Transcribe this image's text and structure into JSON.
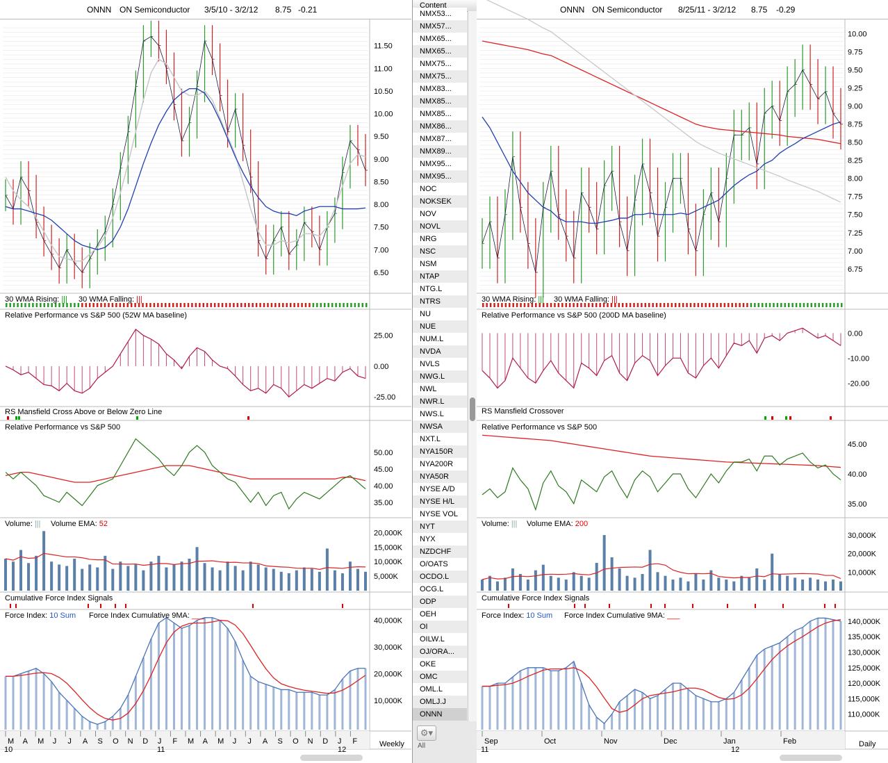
{
  "left": {
    "symbol": "ONNN",
    "name": "ON Semiconductor",
    "range": "3/5/10 - 3/2/12",
    "last": "8.75",
    "change": "-0.21",
    "price_ticks": [
      "11.50",
      "11.00",
      "10.50",
      "10.00",
      "9.50",
      "9.00",
      "8.50",
      "8.00",
      "7.50",
      "7.00",
      "6.50"
    ],
    "wma_rising": "30 WMA Rising:",
    "wma_falling": "30 WMA Falling:",
    "rp_title": "Relative Performance vs S&P 500 (52W MA baseline)",
    "rp_ticks": [
      "25.00",
      "0.00",
      "-25.00"
    ],
    "rs_title": "RS Mansfield Cross Above or Below Zero Line",
    "rp2_title": "Relative Performance vs S&P 500",
    "rp2_ticks": [
      "50.00",
      "45.00",
      "40.00",
      "35.00"
    ],
    "vol_label": "Volume:",
    "vol_ema_label": "Volume EMA:",
    "vol_ema_value": "52",
    "vol_ticks": [
      "20,000K",
      "15,000K",
      "10,000K",
      "5,000K"
    ],
    "cfi_title": "Cumulative Force Index Signals",
    "fi_label": "Force Index:",
    "fi_value": "10 Sum",
    "fi_cum_label": "Force Index Cumulative 9MA:",
    "fi_ticks": [
      "40,000K",
      "30,000K",
      "20,000K",
      "10,000K"
    ],
    "months": [
      "M",
      "A",
      "M",
      "J",
      "J",
      "A",
      "S",
      "O",
      "N",
      "D",
      "J",
      "F",
      "M",
      "A",
      "M",
      "J",
      "J",
      "A",
      "S",
      "O",
      "N",
      "D",
      "J",
      "F"
    ],
    "years": [
      "10",
      "11",
      "12"
    ],
    "timeframe": "Weekly"
  },
  "right": {
    "symbol": "ONNN",
    "name": "ON Semiconductor",
    "range": "8/25/11 - 3/2/12",
    "last": "8.75",
    "change": "-0.29",
    "price_ticks": [
      "10.00",
      "9.75",
      "9.50",
      "9.25",
      "9.00",
      "8.75",
      "8.50",
      "8.25",
      "8.00",
      "7.75",
      "7.50",
      "7.25",
      "7.00",
      "6.75"
    ],
    "wma_rising": "30 WMA Rising:",
    "wma_falling": "30 WMA Falling:",
    "rp_title": "Relative Performance vs S&P 500 (200D MA baseline)",
    "rp_ticks": [
      "0.00",
      "-10.00",
      "-20.00"
    ],
    "rs_title": "RS Mansfield Crossover",
    "rp2_title": "Relative Performance vs S&P 500",
    "rp2_ticks": [
      "45.00",
      "40.00",
      "35.00"
    ],
    "vol_label": "Volume:",
    "vol_ema_label": "Volume EMA:",
    "vol_ema_value": "200",
    "vol_ticks": [
      "30,000K",
      "20,000K",
      "10,000K"
    ],
    "cfi_title": "Cumulative Force Index Signals",
    "fi_label": "Force Index:",
    "fi_value": "10 Sum",
    "fi_cum_label": "Force Index Cumulative 9MA:",
    "fi_ticks": [
      "140,000K",
      "135,000K",
      "130,000K",
      "125,000K",
      "120,000K",
      "115,000K",
      "110,000K"
    ],
    "months": [
      "Sep",
      "Oct",
      "Nov",
      "Dec",
      "Jan",
      "Feb"
    ],
    "years": [
      "11",
      "12"
    ],
    "timeframe": "Daily"
  },
  "list": {
    "header": "Content",
    "items": [
      "NMX53...",
      "NMX57...",
      "NMX65...",
      "NMX65...",
      "NMX75...",
      "NMX75...",
      "NMX83...",
      "NMX85...",
      "NMX85...",
      "NMX86...",
      "NMX87...",
      "NMX89...",
      "NMX95...",
      "NMX95...",
      "NOC",
      "NOKSEK",
      "NOV",
      "NOVL",
      "NRG",
      "NSC",
      "NSM",
      "NTAP",
      "NTG.L",
      "NTRS",
      "NU",
      "NUE",
      "NUM.L",
      "NVDA",
      "NVLS",
      "NWG.L",
      "NWL",
      "NWR.L",
      "NWS.L",
      "NWSA",
      "NXT.L",
      "NYA150R",
      "NYA200R",
      "NYA50R",
      "NYSE A/D",
      "NYSE H/L",
      "NYSE VOL",
      "NYT",
      "NYX",
      "NZDCHF",
      "O/OATS",
      "OCDO.L",
      "OCG.L",
      "ODP",
      "OEH",
      "OI",
      "OILW.L",
      "OJ/ORA...",
      "OKE",
      "OMC",
      "OML.L",
      "OMLJ.J",
      "ONNN"
    ],
    "selected": "ONNN",
    "footer": "All",
    "gear_icon": "gear-icon"
  },
  "colors": {
    "up": "#2a9a2a",
    "down": "#cc2222",
    "ma_blue": "#1f3fb0",
    "ma_red": "#dd2222",
    "ma_gray": "#c8c8c8",
    "rs_line": "#2d7a1f",
    "vol": "#5a7fa8",
    "fi_bar": "#4a74b8"
  },
  "chart_data": [
    {
      "type": "line",
      "title": "ONNN ON Semiconductor 3/5/10 - 3/2/12 (Weekly)",
      "ylim": [
        6.1,
        12.0
      ],
      "series": [
        {
          "name": "Price",
          "values": [
            8.2,
            7.9,
            8.6,
            8.3,
            7.6,
            7.2,
            6.9,
            6.6,
            7.0,
            6.7,
            6.5,
            6.8,
            7.1,
            7.4,
            8.0,
            8.8,
            9.6,
            10.6,
            11.6,
            11.7,
            11.5,
            11.0,
            10.2,
            9.4,
            9.8,
            10.6,
            11.6,
            11.2,
            10.4,
            9.6,
            10.1,
            9.3,
            8.6,
            7.2,
            6.8,
            7.2,
            7.5,
            6.9,
            7.1,
            7.6,
            7.4,
            7.0,
            7.5,
            7.8,
            8.7,
            9.4,
            9.2,
            8.75
          ]
        },
        {
          "name": "",
          "values": [
            7.95,
            7.9,
            7.9,
            7.85,
            7.8,
            7.75,
            7.65,
            7.5,
            7.35,
            7.2,
            7.1,
            7.05,
            7.0,
            7.05,
            7.2,
            7.5,
            7.9,
            8.4,
            8.9,
            9.35,
            9.75,
            10.05,
            10.3,
            10.45,
            10.55,
            10.55,
            10.45,
            10.2,
            9.85,
            9.45,
            9.05,
            8.7,
            8.4,
            8.15,
            7.95,
            7.85,
            7.8,
            7.8,
            7.75,
            7.85,
            7.9,
            7.95,
            7.95,
            7.95,
            7.9,
            7.9,
            7.9,
            7.92
          ]
        },
        {
          "name": "",
          "values": [
            8.6,
            8.3,
            8.1,
            7.95,
            7.7,
            7.4,
            7.1,
            6.85,
            6.8,
            6.75,
            6.75,
            6.9,
            7.05,
            7.3,
            7.7,
            8.25,
            8.9,
            9.6,
            10.3,
            10.9,
            11.2,
            11.1,
            10.8,
            10.5,
            10.4,
            10.4,
            10.5,
            10.3,
            9.9,
            9.5,
            9.1,
            8.5,
            7.9,
            7.4,
            7.1,
            7.1,
            7.2,
            7.15,
            7.2,
            7.35,
            7.35,
            7.3,
            7.5,
            7.9,
            8.4,
            8.9,
            9.1,
            9.05
          ]
        }
      ]
    },
    {
      "type": "bar",
      "title": "Relative Performance vs S&P 500 (52W MA baseline)",
      "ylim": [
        -30,
        35
      ],
      "values": [
        0,
        -3,
        -7,
        -5,
        -10,
        -15,
        -16,
        -20,
        -14,
        -20,
        -22,
        -18,
        -10,
        -5,
        0,
        10,
        20,
        30,
        25,
        22,
        18,
        10,
        5,
        -2,
        8,
        15,
        12,
        5,
        0,
        -2,
        -8,
        -15,
        -20,
        -18,
        -22,
        -15,
        -18,
        -25,
        -20,
        -15,
        -18,
        -14,
        -10,
        -12,
        -5,
        -2,
        -8,
        -10
      ]
    },
    {
      "type": "line",
      "title": "Relative Performance vs S&P 500",
      "ylim": [
        31,
        56
      ],
      "series": [
        {
          "name": "",
          "values": [
            44,
            42,
            44,
            42,
            40,
            37,
            36,
            35,
            38,
            36,
            34,
            37,
            40,
            41,
            42,
            46,
            50,
            54,
            52,
            50,
            48,
            45,
            43,
            46,
            50,
            52,
            50,
            46,
            44,
            42,
            41,
            38,
            35,
            38,
            34,
            37,
            38,
            33,
            36,
            38,
            37,
            36,
            38,
            40,
            42,
            43,
            41,
            39
          ]
        },
        {
          "name": "",
          "values": [
            43,
            43.5,
            44,
            44,
            43.5,
            43,
            42.5,
            42,
            41.5,
            41,
            41,
            41,
            41.5,
            42,
            42.5,
            43,
            43.5,
            44,
            44.5,
            45,
            45.5,
            46,
            46,
            46,
            46,
            45.5,
            45,
            44.5,
            44,
            43.5,
            43,
            42.5,
            42,
            42,
            42,
            42,
            42,
            42,
            42,
            42,
            42,
            42,
            42,
            42,
            42.5,
            42.5,
            42,
            41.5
          ]
        }
      ]
    },
    {
      "type": "bar",
      "title": "Volume (Weekly, K)",
      "ylim": [
        0,
        22000
      ],
      "values": [
        11000,
        10000,
        14000,
        9500,
        12000,
        20500,
        10000,
        9000,
        8500,
        11000,
        7500,
        9000,
        8000,
        12000,
        7500,
        10000,
        8500,
        9000,
        7000,
        10000,
        12000,
        8000,
        9000,
        10000,
        11000,
        15000,
        9500,
        8000,
        7000,
        10000,
        8500,
        7000,
        10000,
        9000,
        8000,
        7500,
        6500,
        6000,
        7000,
        8000,
        7500,
        6500,
        14500,
        7000,
        6000,
        10000,
        7500,
        6500
      ]
    },
    {
      "type": "bar",
      "title": "Force Index (Weekly, K)",
      "ylim": [
        -1000,
        42000
      ],
      "values": [
        19000,
        19000,
        20000,
        21000,
        22000,
        20000,
        17000,
        13000,
        10000,
        7000,
        4000,
        2000,
        1000,
        2000,
        4000,
        7000,
        12000,
        19000,
        26000,
        33000,
        39000,
        41000,
        39000,
        37000,
        38000,
        40000,
        41000,
        41000,
        40000,
        37000,
        32000,
        25000,
        19000,
        17000,
        16000,
        15000,
        14000,
        14000,
        13000,
        13000,
        13000,
        12000,
        12000,
        14000,
        18000,
        21000,
        22000,
        22000
      ]
    },
    {
      "type": "line",
      "title": "ONNN ON Semiconductor 8/25/11 - 3/2/12 (Daily)",
      "ylim": [
        6.45,
        10.15
      ],
      "series": [
        {
          "name": "Price",
          "values": [
            7.1,
            7.4,
            6.9,
            7.5,
            8.3,
            7.6,
            7.1,
            6.7,
            7.6,
            8.1,
            7.5,
            7.2,
            6.9,
            7.8,
            7.6,
            7.3,
            7.9,
            8.1,
            7.4,
            7.0,
            7.7,
            8.2,
            7.8,
            7.2,
            7.6,
            8.0,
            8.0,
            7.3,
            7.0,
            7.5,
            7.8,
            7.4,
            8.0,
            8.6,
            8.6,
            8.7,
            8.2,
            8.9,
            9.0,
            8.8,
            9.2,
            9.3,
            9.5,
            9.3,
            9.1,
            9.2,
            8.9,
            8.75
          ]
        },
        {
          "name": "",
          "values": [
            8.85,
            8.7,
            8.5,
            8.3,
            8.1,
            7.95,
            7.8,
            7.7,
            7.6,
            7.55,
            7.45,
            7.4,
            7.4,
            7.4,
            7.38,
            7.38,
            7.4,
            7.42,
            7.45,
            7.45,
            7.5,
            7.5,
            7.52,
            7.5,
            7.5,
            7.5,
            7.52,
            7.5,
            7.55,
            7.6,
            7.65,
            7.7,
            7.8,
            7.9,
            7.98,
            8.05,
            8.1,
            8.2,
            8.25,
            8.35,
            8.42,
            8.48,
            8.55,
            8.6,
            8.65,
            8.7,
            8.75,
            8.78
          ]
        },
        {
          "name": "",
          "values": [
            9.9,
            9.88,
            9.86,
            9.84,
            9.82,
            9.8,
            9.78,
            9.75,
            9.72,
            9.7,
            9.65,
            9.6,
            9.55,
            9.5,
            9.45,
            9.4,
            9.35,
            9.3,
            9.25,
            9.2,
            9.15,
            9.1,
            9.05,
            9.0,
            8.95,
            8.9,
            8.85,
            8.8,
            8.75,
            8.72,
            8.7,
            8.68,
            8.67,
            8.66,
            8.65,
            8.64,
            8.63,
            8.62,
            8.61,
            8.6,
            8.58,
            8.57,
            8.56,
            8.55,
            8.54,
            8.52,
            8.5,
            8.48
          ]
        }
      ]
    },
    {
      "type": "bar",
      "title": "Relative Performance vs S&P 500 (200D MA baseline)",
      "ylim": [
        -28,
        4
      ],
      "values": [
        -15,
        -18,
        -22,
        -19,
        -10,
        -14,
        -18,
        -20,
        -15,
        -11,
        -16,
        -19,
        -22,
        -12,
        -14,
        -17,
        -11,
        -9,
        -16,
        -19,
        -12,
        -9,
        -11,
        -17,
        -13,
        -10,
        -10,
        -16,
        -18,
        -13,
        -10,
        -14,
        -9,
        -4,
        -5,
        -3,
        -8,
        -2,
        -1,
        -3,
        0,
        1,
        2,
        0,
        -2,
        -1,
        -3,
        -5
      ]
    },
    {
      "type": "line",
      "title": "Relative Performance vs S&P 500",
      "ylim": [
        33,
        47
      ],
      "series": [
        {
          "name": "",
          "values": [
            36.5,
            37.5,
            36,
            37,
            41,
            39,
            37.5,
            34,
            38.5,
            40.5,
            38,
            37,
            35,
            39,
            38,
            37,
            39.5,
            40.5,
            38,
            36,
            39,
            40.5,
            39.5,
            37,
            38.5,
            40,
            40,
            37.5,
            36,
            38,
            40,
            38.5,
            40.5,
            42,
            42,
            42.5,
            40.5,
            43,
            43,
            41.5,
            42.5,
            43,
            43.5,
            42,
            41,
            41.5,
            40,
            39
          ]
        },
        {
          "name": "",
          "values": [
            46.5,
            46.4,
            46.3,
            46.2,
            46.1,
            46.0,
            45.9,
            45.8,
            45.7,
            45.6,
            45.4,
            45.2,
            45.0,
            44.8,
            44.6,
            44.4,
            44.2,
            44.0,
            43.8,
            43.6,
            43.4,
            43.2,
            43.0,
            42.9,
            42.8,
            42.7,
            42.6,
            42.5,
            42.4,
            42.3,
            42.2,
            42.1,
            42.0,
            41.95,
            41.9,
            41.85,
            41.8,
            41.75,
            41.7,
            41.65,
            41.6,
            41.55,
            41.5,
            41.45,
            41.4,
            41.3,
            41.2,
            41.1
          ]
        }
      ]
    },
    {
      "type": "bar",
      "title": "Volume (Daily, K)",
      "ylim": [
        0,
        33000
      ],
      "values": [
        6000,
        8000,
        5000,
        7000,
        12000,
        9000,
        6000,
        11000,
        14000,
        8000,
        7000,
        6000,
        10000,
        8000,
        7000,
        15000,
        30000,
        18000,
        12000,
        8000,
        7000,
        9000,
        22000,
        10000,
        8000,
        6000,
        7000,
        5000,
        9000,
        6000,
        11000,
        7000,
        6000,
        5000,
        8000,
        7000,
        12000,
        6000,
        20000,
        9000,
        8000,
        7000,
        6000,
        7000,
        6000,
        5000,
        6000,
        5000
      ]
    },
    {
      "type": "bar",
      "title": "Force Index (Daily, K)",
      "ylim": [
        105000,
        142000
      ],
      "values": [
        119000,
        119000,
        120000,
        120000,
        122000,
        124000,
        125000,
        125000,
        125000,
        124000,
        124000,
        125000,
        127000,
        120000,
        113000,
        109000,
        107000,
        110000,
        114000,
        116000,
        118000,
        117000,
        115000,
        116000,
        118000,
        120000,
        120000,
        118000,
        116000,
        115000,
        114000,
        114000,
        115000,
        117000,
        121000,
        125000,
        129000,
        131000,
        132000,
        133000,
        135000,
        137000,
        138000,
        140000,
        141000,
        141000,
        140500,
        140000
      ]
    }
  ]
}
